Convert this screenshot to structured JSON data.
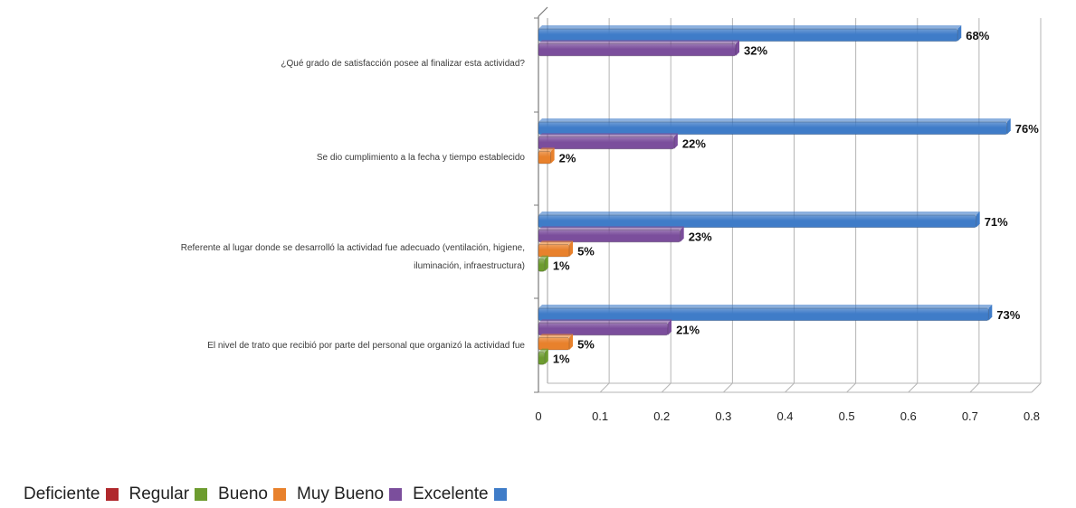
{
  "chart_data": {
    "type": "bar",
    "orientation": "horizontal",
    "categories": [
      "¿Qué grado de satisfacción posee al finalizar esta actividad?",
      "Se dio cumplimiento a la fecha y tiempo establecido",
      "Referente al lugar donde se desarrolló la actividad fue adecuado (ventilación, higiene, iluminación, infraestructura)",
      "El nivel de trato que recibió por parte del personal que organizó la actividad fue"
    ],
    "series": [
      {
        "name": "Deficiente",
        "color": "#b0282c",
        "values": [
          0,
          0,
          0,
          0
        ],
        "labels": [
          "",
          "",
          "",
          ""
        ]
      },
      {
        "name": "Regular",
        "color": "#6d9c2f",
        "values": [
          0,
          0,
          0.01,
          0.01
        ],
        "labels": [
          "",
          "",
          "1%",
          "1%"
        ]
      },
      {
        "name": "Bueno",
        "color": "#e8812c",
        "values": [
          0,
          0.02,
          0.05,
          0.05
        ],
        "labels": [
          "",
          "2%",
          "5%",
          "5%"
        ]
      },
      {
        "name": "Muy Bueno",
        "color": "#7b4e9c",
        "values": [
          0.32,
          0.22,
          0.23,
          0.21
        ],
        "labels": [
          "32%",
          "22%",
          "23%",
          "21%"
        ]
      },
      {
        "name": "Excelente",
        "color": "#3f7cc8",
        "values": [
          0.68,
          0.76,
          0.71,
          0.73
        ],
        "labels": [
          "68%",
          "76%",
          "71%",
          "73%"
        ]
      }
    ],
    "xlim": [
      0,
      0.8
    ],
    "xticks": [
      "0",
      "0.1",
      "0.2",
      "0.3",
      "0.4",
      "0.5",
      "0.6",
      "0.7",
      "0.8"
    ],
    "grid": true,
    "legend_position": "bottom-left",
    "title": "",
    "xlabel": "",
    "ylabel": ""
  }
}
